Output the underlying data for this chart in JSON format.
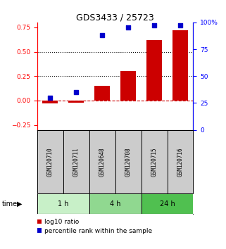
{
  "title": "GDS3433 / 25723",
  "samples": [
    "GSM120710",
    "GSM120711",
    "GSM120648",
    "GSM120708",
    "GSM120715",
    "GSM120716"
  ],
  "log10_ratio": [
    -0.03,
    -0.02,
    0.15,
    0.3,
    0.62,
    0.72
  ],
  "percentile_rank": [
    30,
    35,
    88,
    95,
    97,
    97
  ],
  "groups": [
    {
      "label": "1 h",
      "indices": [
        0,
        1
      ],
      "color": "#c8f0c8"
    },
    {
      "label": "4 h",
      "indices": [
        2,
        3
      ],
      "color": "#90d890"
    },
    {
      "label": "24 h",
      "indices": [
        4,
        5
      ],
      "color": "#50c050"
    }
  ],
  "bar_color": "#cc0000",
  "dot_color": "#0000cc",
  "left_ylim": [
    -0.3,
    0.8
  ],
  "right_ylim": [
    0,
    100
  ],
  "left_yticks": [
    -0.25,
    0,
    0.25,
    0.5,
    0.75
  ],
  "right_yticks": [
    0,
    25,
    50,
    75,
    100
  ],
  "right_yticklabels": [
    "0",
    "25",
    "50",
    "75",
    "100%"
  ],
  "hlines": [
    0.5,
    0.25
  ],
  "title_fontsize": 9,
  "tick_fontsize": 6.5,
  "label_fontsize": 6.5,
  "sample_fontsize": 5.5,
  "background_color": "#ffffff",
  "sample_box_color": "#cccccc",
  "time_label": "time"
}
